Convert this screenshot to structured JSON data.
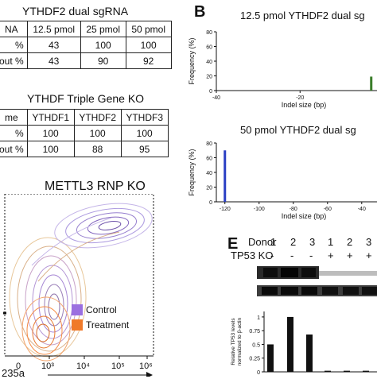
{
  "panel_a": {
    "table1": {
      "title": "YTHDF2 dual sgRNA",
      "columns": [
        "NA",
        "12.5 pmol",
        "25 pmol",
        "50 pmol"
      ],
      "rows": [
        {
          "label": "%",
          "values": [
            "43",
            "100",
            "100"
          ]
        },
        {
          "label": "out %",
          "values": [
            "43",
            "90",
            "92"
          ]
        }
      ]
    },
    "table2": {
      "title": "YTHDF Triple Gene KO",
      "columns": [
        "me",
        "YTHDF1",
        "YTHDF2",
        "YTHDF3"
      ],
      "rows": [
        {
          "label": "%",
          "values": [
            "100",
            "100",
            "100"
          ]
        },
        {
          "label": "out %",
          "values": [
            "100",
            "88",
            "95"
          ]
        }
      ]
    }
  },
  "panel_b": {
    "letter": "B",
    "chart_data": [
      {
        "type": "bar",
        "title": "12.5 pmol YTHDF2 dual sg",
        "xlabel": "Indel size (bp)",
        "ylabel": "Frequency (%)",
        "xticks": [
          "-40",
          "-20"
        ],
        "yticks": [
          "0",
          "20",
          "40",
          "60",
          "80"
        ],
        "ylim": [
          0,
          80
        ],
        "xlim": [
          -40,
          -2
        ],
        "bars": [
          {
            "x": -3,
            "y": 19,
            "color": "#3a7d2a"
          }
        ]
      },
      {
        "type": "bar",
        "title": "50 pmol YTHDF2 dual sg",
        "xlabel": "Indel size (bp)",
        "ylabel": "Frequency (%)",
        "xticks": [
          "-120",
          "-100",
          "-80",
          "-60",
          "-40"
        ],
        "yticks": [
          "0",
          "20",
          "40",
          "60",
          "80"
        ],
        "ylim": [
          0,
          80
        ],
        "xlim": [
          -125,
          -32
        ],
        "bars": [
          {
            "x": -120,
            "y": 70,
            "color": "#2a3fc4"
          }
        ]
      }
    ]
  },
  "panel_c": {
    "title": "METTL3 RNP KO",
    "legend": [
      {
        "label": "Control",
        "color": "#9b6fe0"
      },
      {
        "label": "Treatment",
        "color": "#f07a2a"
      }
    ],
    "xticks": [
      "10³",
      "10⁴",
      "10⁵",
      "10⁶"
    ],
    "xticks_left": [
      "0"
    ],
    "xlabel": "235a"
  },
  "panel_e": {
    "letter": "E",
    "donor_label": "Donor",
    "donors": [
      "1",
      "2",
      "3",
      "1",
      "2",
      "3"
    ],
    "ko_label": "TP53 KO",
    "ko_status": [
      "-",
      "-",
      "-",
      "+",
      "+",
      "+"
    ],
    "chart_data": {
      "type": "bar",
      "ylabel": "Relative TP53 levels normalized to β-actin",
      "yticks": [
        "0",
        "0.25",
        "0.5",
        "0.75",
        "1"
      ],
      "ylim": [
        0,
        1.1
      ],
      "values": [
        0.5,
        1.0,
        0.68,
        0.02,
        0.02,
        0.02
      ]
    }
  }
}
